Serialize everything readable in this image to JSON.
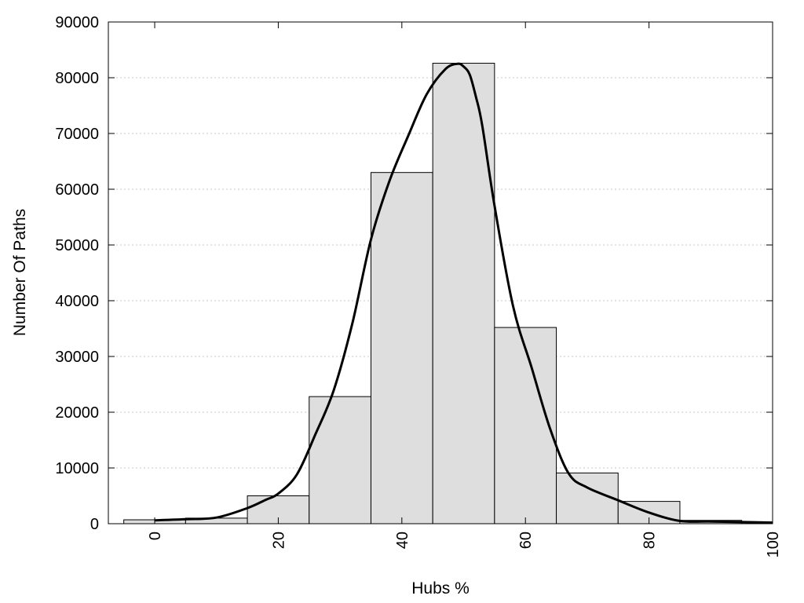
{
  "chart_data": {
    "type": "bar",
    "xlabel": "Hubs %",
    "ylabel": "Number Of Paths",
    "xlim": [
      -7.5,
      100
    ],
    "ylim": [
      0,
      90000
    ],
    "grid": "horizontal-dotted",
    "x_ticks": [
      "0",
      "20",
      "40",
      "60",
      "80",
      "100"
    ],
    "y_ticks": [
      "0",
      "10000",
      "20000",
      "30000",
      "40000",
      "50000",
      "60000",
      "70000",
      "80000",
      "90000"
    ],
    "bar_width": 10,
    "bars": [
      {
        "x": 0,
        "value": 700
      },
      {
        "x": 10,
        "value": 1000
      },
      {
        "x": 20,
        "value": 5000
      },
      {
        "x": 30,
        "value": 22800
      },
      {
        "x": 40,
        "value": 63000
      },
      {
        "x": 50,
        "value": 82600
      },
      {
        "x": 60,
        "value": 35200
      },
      {
        "x": 70,
        "value": 9100
      },
      {
        "x": 80,
        "value": 4000
      },
      {
        "x": 90,
        "value": 600
      }
    ],
    "curve": {
      "x": [
        0,
        5,
        10,
        15,
        18,
        20,
        23,
        26,
        29,
        32,
        35,
        38,
        41,
        44,
        47,
        49,
        50,
        51,
        52,
        53,
        55,
        58,
        61,
        64,
        67,
        70,
        75,
        80,
        85,
        90,
        95,
        100
      ],
      "y": [
        600,
        800,
        1100,
        2800,
        4300,
        5400,
        8800,
        16000,
        24000,
        36000,
        51000,
        61500,
        69500,
        77000,
        81500,
        82500,
        82000,
        80500,
        76500,
        71500,
        57000,
        39000,
        28000,
        17000,
        9000,
        6500,
        4200,
        2000,
        500,
        400,
        300,
        200
      ]
    }
  }
}
